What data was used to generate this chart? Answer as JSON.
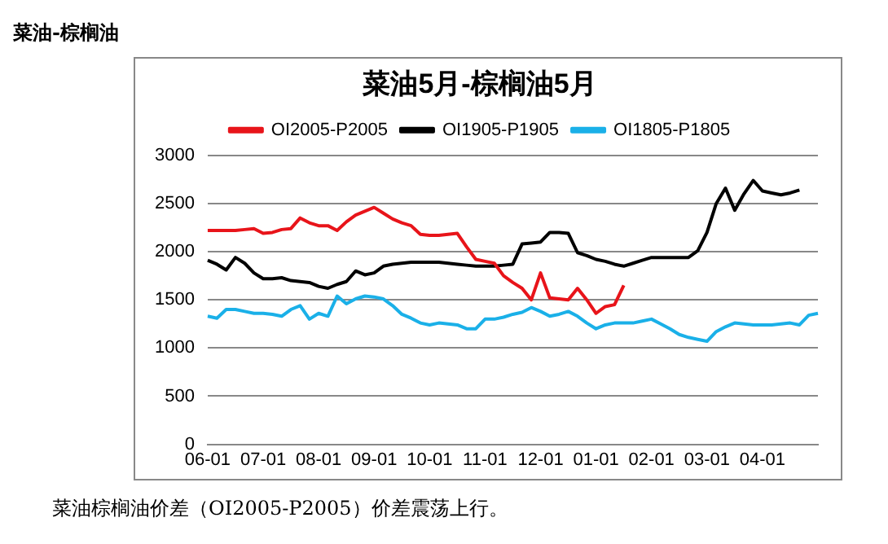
{
  "chart_data": {
    "type": "line",
    "title": "菜油5月-棕榈油5月",
    "annotations": [
      "菜油-棕榈油",
      "菜油棕榈油价差（OI2005-P2005）价差震荡上行。"
    ],
    "categories": [
      "06-01",
      null,
      null,
      null,
      null,
      null,
      "07-01",
      null,
      null,
      null,
      null,
      null,
      "08-01",
      null,
      null,
      null,
      null,
      null,
      "09-01",
      null,
      null,
      null,
      null,
      null,
      "10-01",
      null,
      null,
      null,
      null,
      null,
      "11-01",
      null,
      null,
      null,
      null,
      null,
      "12-01",
      null,
      null,
      null,
      null,
      null,
      "01-01",
      null,
      null,
      null,
      null,
      null,
      "02-01",
      null,
      null,
      null,
      null,
      null,
      "03-01",
      null,
      null,
      null,
      null,
      null,
      "04-01",
      null,
      null,
      null,
      null,
      null,
      null
    ],
    "ylim": [
      0,
      3000
    ],
    "yticks": [
      0,
      500,
      1000,
      1500,
      2000,
      2500,
      3000
    ],
    "grid": "y",
    "legend": "top",
    "line_style": "solid",
    "series": [
      {
        "name": "OI2005-P2005",
        "color": "#e8141a",
        "values": [
          2220,
          2220,
          2220,
          2220,
          2230,
          2240,
          2190,
          2200,
          2230,
          2240,
          2350,
          2300,
          2270,
          2270,
          2220,
          2310,
          2380,
          2420,
          2460,
          2400,
          2340,
          2300,
          2270,
          2180,
          2170,
          2170,
          2180,
          2190,
          2050,
          1920,
          1900,
          1880,
          1750,
          1680,
          1620,
          1500,
          1780,
          1520,
          1510,
          1500,
          1620,
          1500,
          1360,
          1430,
          1450,
          1650,
          null,
          null,
          null,
          null,
          null,
          null,
          null,
          null,
          null,
          null,
          null,
          null,
          null,
          null,
          null,
          null,
          null,
          null,
          null,
          null,
          null
        ]
      },
      {
        "name": "OI1905-P1905",
        "color": "#000000",
        "values": [
          1910,
          1870,
          1810,
          1940,
          1880,
          1780,
          1720,
          1720,
          1730,
          1700,
          1690,
          1680,
          1640,
          1620,
          1660,
          1690,
          1800,
          1760,
          1780,
          1850,
          1870,
          1880,
          1890,
          1890,
          1890,
          1890,
          1880,
          1870,
          1860,
          1850,
          1850,
          1850,
          1860,
          1870,
          2080,
          2090,
          2100,
          2200,
          2200,
          2190,
          1990,
          1960,
          1920,
          1900,
          1870,
          1850,
          1880,
          1910,
          1940,
          1940,
          1940,
          1940,
          1940,
          2010,
          2200,
          2500,
          2660,
          2430,
          2600,
          2740,
          2630,
          2610,
          2590,
          2610,
          2640,
          null,
          null
        ]
      },
      {
        "name": "OI1805-P1805",
        "color": "#1ab0e8",
        "values": [
          1330,
          1310,
          1400,
          1400,
          1380,
          1360,
          1360,
          1350,
          1330,
          1400,
          1440,
          1300,
          1360,
          1330,
          1540,
          1460,
          1510,
          1540,
          1530,
          1510,
          1440,
          1350,
          1310,
          1260,
          1240,
          1260,
          1250,
          1240,
          1200,
          1200,
          1300,
          1300,
          1320,
          1350,
          1370,
          1420,
          1380,
          1330,
          1350,
          1380,
          1330,
          1260,
          1200,
          1240,
          1260,
          1260,
          1260,
          1280,
          1300,
          1250,
          1200,
          1140,
          1110,
          1090,
          1070,
          1170,
          1220,
          1260,
          1250,
          1240,
          1240,
          1240,
          1250,
          1260,
          1240,
          1340,
          1360
        ]
      }
    ]
  }
}
